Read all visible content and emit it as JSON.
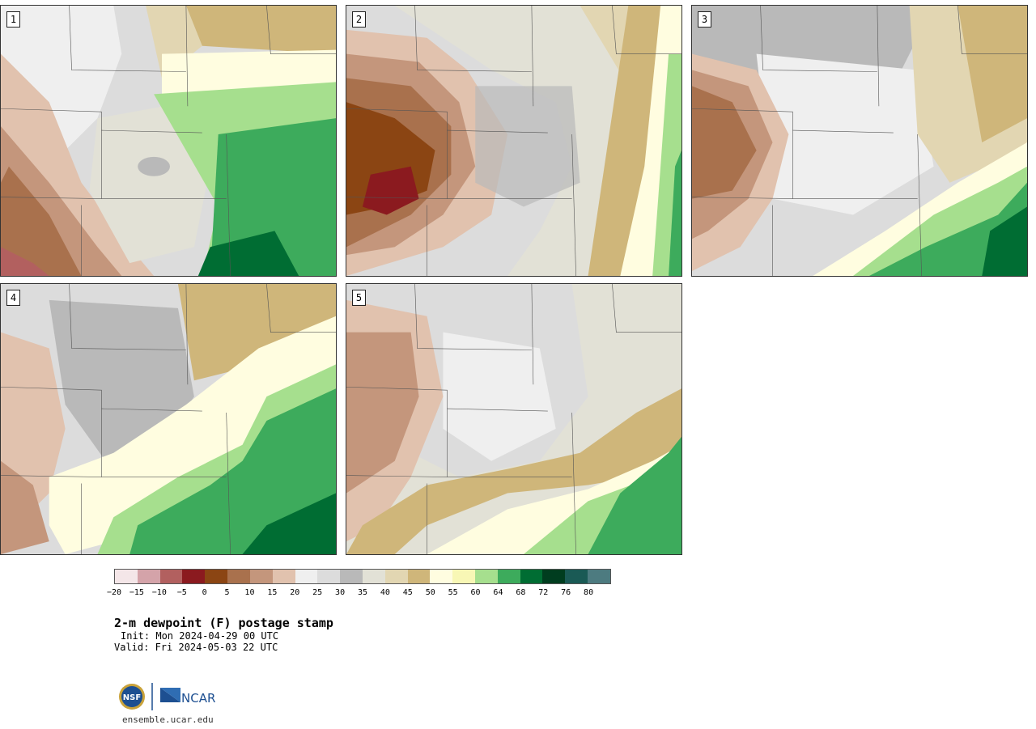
{
  "panels": [
    {
      "number": "1"
    },
    {
      "number": "2"
    },
    {
      "number": "3"
    },
    {
      "number": "4"
    },
    {
      "number": "5"
    }
  ],
  "colorbar": {
    "colors": [
      "#f4e6e8",
      "#d4a3a9",
      "#b2605f",
      "#8b1a1f",
      "#8b4513",
      "#a9714d",
      "#c4967c",
      "#e1c2ae",
      "#efefef",
      "#dcdcdc",
      "#b9b9b9",
      "#e2e1d6",
      "#e2d6b2",
      "#cfb67a",
      "#fffde0",
      "#f8f7b5",
      "#a6df8e",
      "#3dab5c",
      "#006d33",
      "#003d1f",
      "#1a5a55",
      "#4d7b80"
    ],
    "tick_labels": [
      "−20",
      "−15",
      "−10",
      "−5",
      "0",
      "5",
      "10",
      "15",
      "20",
      "25",
      "30",
      "35",
      "40",
      "45",
      "50",
      "55",
      "60",
      "64",
      "68",
      "72",
      "76",
      "80"
    ]
  },
  "title": "2-m dewpoint (F) postage stamp",
  "init": "Init: Mon 2024-04-29 00 UTC",
  "valid": "Valid: Fri 2024-05-03 22 UTC",
  "logos": {
    "nsf": "NSF",
    "ncar": "NCAR"
  },
  "url": "ensemble.ucar.edu"
}
